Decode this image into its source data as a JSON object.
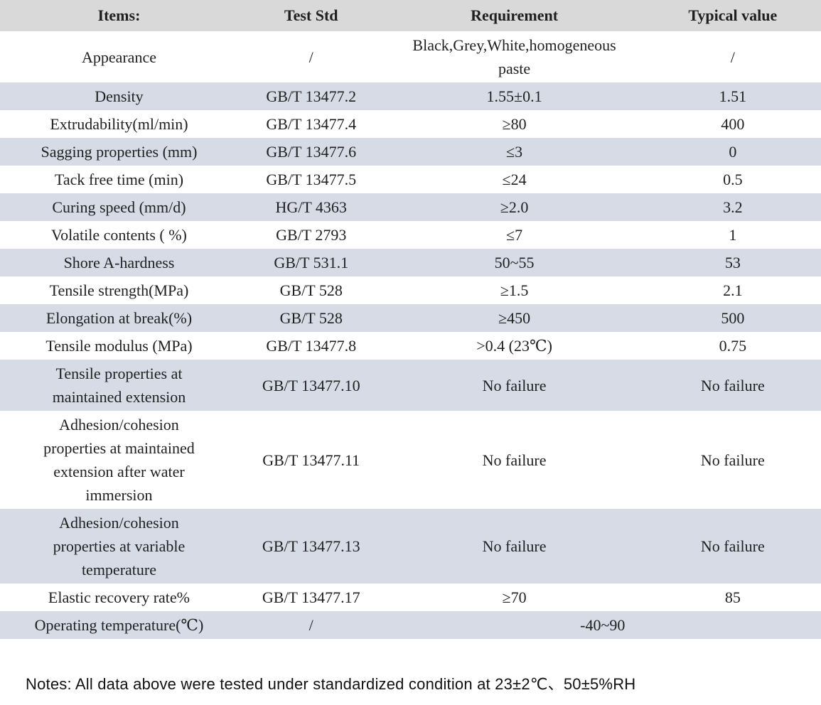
{
  "colors": {
    "header_bg": "#d9d9d9",
    "row_alt_bg": "#d6dbe5",
    "row_bg": "#ffffff",
    "text": "#1f1f1f"
  },
  "table": {
    "headers": [
      "Items:",
      "Test Std",
      "Requirement",
      "Typical value"
    ],
    "rows": [
      {
        "item": "Appearance",
        "std": "/",
        "req": "Black,Grey,White,homogeneous paste",
        "typ": "/"
      },
      {
        "item": "Density",
        "std": "GB/T 13477.2",
        "req": "1.55±0.1",
        "typ": "1.51"
      },
      {
        "item": "Extrudability(ml/min)",
        "std": "GB/T 13477.4",
        "req": "≥80",
        "typ": "400"
      },
      {
        "item": "Sagging properties (mm)",
        "std": "GB/T 13477.6",
        "req": "≤3",
        "typ": "0"
      },
      {
        "item": "Tack free time (min)",
        "std": "GB/T 13477.5",
        "req": "≤24",
        "typ": "0.5"
      },
      {
        "item": "Curing speed (mm/d)",
        "std": "HG/T 4363",
        "req": "≥2.0",
        "typ": "3.2"
      },
      {
        "item": "Volatile contents ( %)",
        "std": "GB/T 2793",
        "req": "≤7",
        "typ": "1"
      },
      {
        "item": "Shore A-hardness",
        "std": "GB/T 531.1",
        "req": "50~55",
        "typ": "53"
      },
      {
        "item": "Tensile strength(MPa)",
        "std": "GB/T 528",
        "req": "≥1.5",
        "typ": "2.1"
      },
      {
        "item": "Elongation at break(%)",
        "std": "GB/T 528",
        "req": "≥450",
        "typ": "500"
      },
      {
        "item": "Tensile modulus (MPa)",
        "std": "GB/T 13477.8",
        "req": ">0.4 (23℃)",
        "typ": "0.75"
      },
      {
        "item": "Tensile properties at maintained extension",
        "std": "GB/T 13477.10",
        "req": "No failure",
        "typ": "No failure"
      },
      {
        "item": "Adhesion/cohesion properties at maintained extension after water immersion",
        "std": "GB/T 13477.11",
        "req": "No failure",
        "typ": "No failure"
      },
      {
        "item": "Adhesion/cohesion properties at variable temperature",
        "std": "GB/T 13477.13",
        "req": "No failure",
        "typ": "No failure"
      },
      {
        "item": "Elastic recovery rate%",
        "std": "GB/T 13477.17",
        "req": "≥70",
        "typ": "85"
      },
      {
        "item": "Operating temperature(℃)",
        "std": "/",
        "req": "-40~90",
        "merged": true
      }
    ]
  },
  "notes": "Notes: All data above were tested under standardized condition at 23±2℃、50±5%RH"
}
